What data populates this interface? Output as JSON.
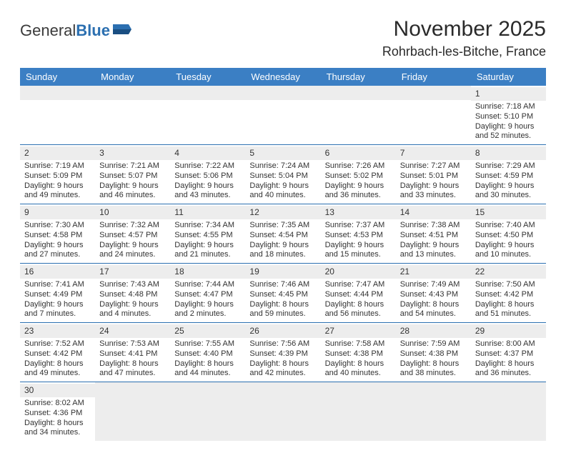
{
  "logo": {
    "part1": "General",
    "part2": "Blue"
  },
  "title": "November 2025",
  "location": "Rohrbach-les-Bitche, France",
  "day_names": [
    "Sunday",
    "Monday",
    "Tuesday",
    "Wednesday",
    "Thursday",
    "Friday",
    "Saturday"
  ],
  "colors": {
    "header_bg": "#3b7fc4",
    "header_fg": "#ffffff",
    "daynum_bg": "#ededed",
    "rule": "#2b6fb0",
    "logo_accent": "#2b6fb0"
  },
  "weeks": [
    [
      null,
      null,
      null,
      null,
      null,
      null,
      {
        "n": "1",
        "sunrise": "Sunrise: 7:18 AM",
        "sunset": "Sunset: 5:10 PM",
        "daylight": "Daylight: 9 hours and 52 minutes."
      }
    ],
    [
      {
        "n": "2",
        "sunrise": "Sunrise: 7:19 AM",
        "sunset": "Sunset: 5:09 PM",
        "daylight": "Daylight: 9 hours and 49 minutes."
      },
      {
        "n": "3",
        "sunrise": "Sunrise: 7:21 AM",
        "sunset": "Sunset: 5:07 PM",
        "daylight": "Daylight: 9 hours and 46 minutes."
      },
      {
        "n": "4",
        "sunrise": "Sunrise: 7:22 AM",
        "sunset": "Sunset: 5:06 PM",
        "daylight": "Daylight: 9 hours and 43 minutes."
      },
      {
        "n": "5",
        "sunrise": "Sunrise: 7:24 AM",
        "sunset": "Sunset: 5:04 PM",
        "daylight": "Daylight: 9 hours and 40 minutes."
      },
      {
        "n": "6",
        "sunrise": "Sunrise: 7:26 AM",
        "sunset": "Sunset: 5:02 PM",
        "daylight": "Daylight: 9 hours and 36 minutes."
      },
      {
        "n": "7",
        "sunrise": "Sunrise: 7:27 AM",
        "sunset": "Sunset: 5:01 PM",
        "daylight": "Daylight: 9 hours and 33 minutes."
      },
      {
        "n": "8",
        "sunrise": "Sunrise: 7:29 AM",
        "sunset": "Sunset: 4:59 PM",
        "daylight": "Daylight: 9 hours and 30 minutes."
      }
    ],
    [
      {
        "n": "9",
        "sunrise": "Sunrise: 7:30 AM",
        "sunset": "Sunset: 4:58 PM",
        "daylight": "Daylight: 9 hours and 27 minutes."
      },
      {
        "n": "10",
        "sunrise": "Sunrise: 7:32 AM",
        "sunset": "Sunset: 4:57 PM",
        "daylight": "Daylight: 9 hours and 24 minutes."
      },
      {
        "n": "11",
        "sunrise": "Sunrise: 7:34 AM",
        "sunset": "Sunset: 4:55 PM",
        "daylight": "Daylight: 9 hours and 21 minutes."
      },
      {
        "n": "12",
        "sunrise": "Sunrise: 7:35 AM",
        "sunset": "Sunset: 4:54 PM",
        "daylight": "Daylight: 9 hours and 18 minutes."
      },
      {
        "n": "13",
        "sunrise": "Sunrise: 7:37 AM",
        "sunset": "Sunset: 4:53 PM",
        "daylight": "Daylight: 9 hours and 15 minutes."
      },
      {
        "n": "14",
        "sunrise": "Sunrise: 7:38 AM",
        "sunset": "Sunset: 4:51 PM",
        "daylight": "Daylight: 9 hours and 13 minutes."
      },
      {
        "n": "15",
        "sunrise": "Sunrise: 7:40 AM",
        "sunset": "Sunset: 4:50 PM",
        "daylight": "Daylight: 9 hours and 10 minutes."
      }
    ],
    [
      {
        "n": "16",
        "sunrise": "Sunrise: 7:41 AM",
        "sunset": "Sunset: 4:49 PM",
        "daylight": "Daylight: 9 hours and 7 minutes."
      },
      {
        "n": "17",
        "sunrise": "Sunrise: 7:43 AM",
        "sunset": "Sunset: 4:48 PM",
        "daylight": "Daylight: 9 hours and 4 minutes."
      },
      {
        "n": "18",
        "sunrise": "Sunrise: 7:44 AM",
        "sunset": "Sunset: 4:47 PM",
        "daylight": "Daylight: 9 hours and 2 minutes."
      },
      {
        "n": "19",
        "sunrise": "Sunrise: 7:46 AM",
        "sunset": "Sunset: 4:45 PM",
        "daylight": "Daylight: 8 hours and 59 minutes."
      },
      {
        "n": "20",
        "sunrise": "Sunrise: 7:47 AM",
        "sunset": "Sunset: 4:44 PM",
        "daylight": "Daylight: 8 hours and 56 minutes."
      },
      {
        "n": "21",
        "sunrise": "Sunrise: 7:49 AM",
        "sunset": "Sunset: 4:43 PM",
        "daylight": "Daylight: 8 hours and 54 minutes."
      },
      {
        "n": "22",
        "sunrise": "Sunrise: 7:50 AM",
        "sunset": "Sunset: 4:42 PM",
        "daylight": "Daylight: 8 hours and 51 minutes."
      }
    ],
    [
      {
        "n": "23",
        "sunrise": "Sunrise: 7:52 AM",
        "sunset": "Sunset: 4:42 PM",
        "daylight": "Daylight: 8 hours and 49 minutes."
      },
      {
        "n": "24",
        "sunrise": "Sunrise: 7:53 AM",
        "sunset": "Sunset: 4:41 PM",
        "daylight": "Daylight: 8 hours and 47 minutes."
      },
      {
        "n": "25",
        "sunrise": "Sunrise: 7:55 AM",
        "sunset": "Sunset: 4:40 PM",
        "daylight": "Daylight: 8 hours and 44 minutes."
      },
      {
        "n": "26",
        "sunrise": "Sunrise: 7:56 AM",
        "sunset": "Sunset: 4:39 PM",
        "daylight": "Daylight: 8 hours and 42 minutes."
      },
      {
        "n": "27",
        "sunrise": "Sunrise: 7:58 AM",
        "sunset": "Sunset: 4:38 PM",
        "daylight": "Daylight: 8 hours and 40 minutes."
      },
      {
        "n": "28",
        "sunrise": "Sunrise: 7:59 AM",
        "sunset": "Sunset: 4:38 PM",
        "daylight": "Daylight: 8 hours and 38 minutes."
      },
      {
        "n": "29",
        "sunrise": "Sunrise: 8:00 AM",
        "sunset": "Sunset: 4:37 PM",
        "daylight": "Daylight: 8 hours and 36 minutes."
      }
    ],
    [
      {
        "n": "30",
        "sunrise": "Sunrise: 8:02 AM",
        "sunset": "Sunset: 4:36 PM",
        "daylight": "Daylight: 8 hours and 34 minutes."
      },
      null,
      null,
      null,
      null,
      null,
      null
    ]
  ]
}
